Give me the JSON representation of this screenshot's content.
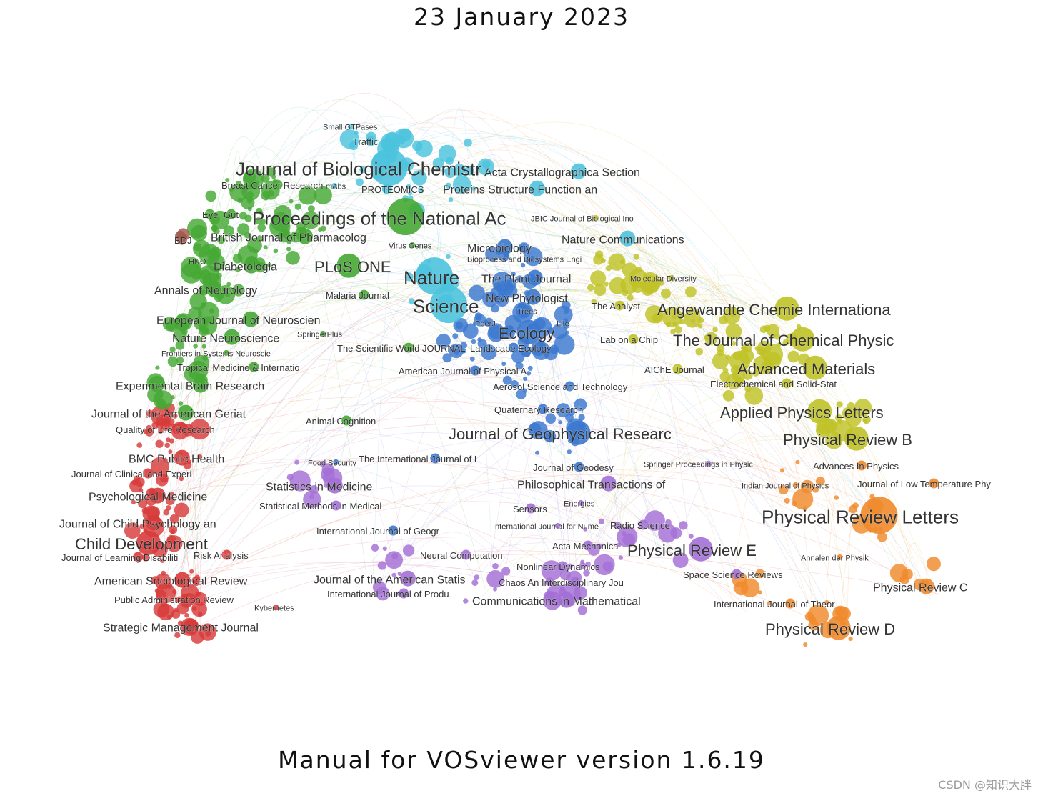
{
  "header": {
    "title": "23 January 2023"
  },
  "footer": {
    "title": "Manual for VOSviewer version 1.6.19",
    "watermark": "CSDN @知识大胖"
  },
  "clusters": {
    "red": "#d83a3a",
    "green": "#45a833",
    "blue": "#3a78cf",
    "yellow": "#bfc226",
    "purple": "#a36fd6",
    "orange": "#f08a2c",
    "cyan": "#4cc3dd",
    "brown": "#a0584c"
  },
  "journals": [
    {
      "label": "Small GTPases",
      "cluster": "cyan",
      "size": "xs"
    },
    {
      "label": "Traffic",
      "cluster": "cyan",
      "size": "s"
    },
    {
      "label": "Journal of Biological Chemistr",
      "cluster": "cyan",
      "size": "xl"
    },
    {
      "label": "Acta Crystallographica Section",
      "cluster": "cyan",
      "size": "m"
    },
    {
      "label": "Breast Cancer Research",
      "cluster": "green",
      "size": "s"
    },
    {
      "label": "mAbs",
      "cluster": "cyan",
      "size": "xs"
    },
    {
      "label": "PROTEOMICS",
      "cluster": "cyan",
      "size": "s"
    },
    {
      "label": "Proteins Structure Function an",
      "cluster": "cyan",
      "size": "m"
    },
    {
      "label": "Eye",
      "cluster": "green",
      "size": "s"
    },
    {
      "label": "Gut",
      "cluster": "green",
      "size": "s"
    },
    {
      "label": "Proceedings of the National Ac",
      "cluster": "green",
      "size": "xl"
    },
    {
      "label": "JBIC Journal of Biological Ino",
      "cluster": "yellow",
      "size": "xs"
    },
    {
      "label": "BDJ",
      "cluster": "brown",
      "size": "s"
    },
    {
      "label": "British Journal of Pharmacolog",
      "cluster": "green",
      "size": "m"
    },
    {
      "label": "Nature Communications",
      "cluster": "cyan",
      "size": "m"
    },
    {
      "label": "Virus Genes",
      "cluster": "green",
      "size": "xs"
    },
    {
      "label": "Microbiology",
      "cluster": "blue",
      "size": "m"
    },
    {
      "label": "HNO",
      "cluster": "green",
      "size": "xs"
    },
    {
      "label": "Diabetologia",
      "cluster": "green",
      "size": "m"
    },
    {
      "label": "PLoS ONE",
      "cluster": "green",
      "size": "l"
    },
    {
      "label": "Bioprocess and Biosystems Engi",
      "cluster": "blue",
      "size": "xs"
    },
    {
      "label": "Nature",
      "cluster": "cyan",
      "size": "xl"
    },
    {
      "label": "The Plant Journal",
      "cluster": "blue",
      "size": "m"
    },
    {
      "label": "Molecular Diversity",
      "cluster": "yellow",
      "size": "xs"
    },
    {
      "label": "Annals of Neurology",
      "cluster": "green",
      "size": "m"
    },
    {
      "label": "Malaria Journal",
      "cluster": "green",
      "size": "s"
    },
    {
      "label": "Science",
      "cluster": "cyan",
      "size": "xl"
    },
    {
      "label": "New Phytologist",
      "cluster": "blue",
      "size": "m"
    },
    {
      "label": "The Analyst",
      "cluster": "yellow",
      "size": "s"
    },
    {
      "label": "Angewandte Chemie Internationa",
      "cluster": "yellow",
      "size": "l"
    },
    {
      "label": "Trees",
      "cluster": "blue",
      "size": "xs"
    },
    {
      "label": "European Journal of Neuroscien",
      "cluster": "green",
      "size": "m"
    },
    {
      "label": "PeerJ",
      "cluster": "blue",
      "size": "xs"
    },
    {
      "label": "Life",
      "cluster": "blue",
      "size": "xs"
    },
    {
      "label": "Ecology",
      "cluster": "blue",
      "size": "l"
    },
    {
      "label": "Lab on a Chip",
      "cluster": "yellow",
      "size": "s"
    },
    {
      "label": "The Journal of Chemical Physic",
      "cluster": "yellow",
      "size": "l"
    },
    {
      "label": "Nature Neuroscience",
      "cluster": "green",
      "size": "m"
    },
    {
      "label": "SpringerPlus",
      "cluster": "green",
      "size": "xs"
    },
    {
      "label": "The Scientific World JOURNAL",
      "cluster": "green",
      "size": "s"
    },
    {
      "label": "Landscape Ecology",
      "cluster": "blue",
      "size": "s"
    },
    {
      "label": "Frontiers in Systems Neuroscie",
      "cluster": "green",
      "size": "xs"
    },
    {
      "label": "Advanced Materials",
      "cluster": "yellow",
      "size": "l"
    },
    {
      "label": "Tropical Medicine & Internatio",
      "cluster": "green",
      "size": "s"
    },
    {
      "label": "American Journal of Physical A",
      "cluster": "blue",
      "size": "s"
    },
    {
      "label": "AIChE Journal",
      "cluster": "yellow",
      "size": "s"
    },
    {
      "label": "Electrochemical and Solid-Stat",
      "cluster": "yellow",
      "size": "s"
    },
    {
      "label": "Experimental Brain Research",
      "cluster": "green",
      "size": "m"
    },
    {
      "label": "Aerosol Science and Technology",
      "cluster": "blue",
      "size": "s"
    },
    {
      "label": "Journal of the American Geriat",
      "cluster": "green",
      "size": "m"
    },
    {
      "label": "Quaternary Research",
      "cluster": "blue",
      "size": "s"
    },
    {
      "label": "Applied Physics Letters",
      "cluster": "yellow",
      "size": "l"
    },
    {
      "label": "Animal Cognition",
      "cluster": "green",
      "size": "s"
    },
    {
      "label": "Quality of Life Research",
      "cluster": "red",
      "size": "s"
    },
    {
      "label": "Journal of Geophysical Researc",
      "cluster": "blue",
      "size": "l"
    },
    {
      "label": "Physical Review B",
      "cluster": "yellow",
      "size": "l"
    },
    {
      "label": "BMC Public Health",
      "cluster": "red",
      "size": "m"
    },
    {
      "label": "Food Security",
      "cluster": "blue",
      "size": "xs"
    },
    {
      "label": "The International Journal of L",
      "cluster": "blue",
      "size": "s"
    },
    {
      "label": "Journal of Geodesy",
      "cluster": "blue",
      "size": "s"
    },
    {
      "label": "Springer Proceedings in Physic",
      "cluster": "purple",
      "size": "xs"
    },
    {
      "label": "Advances In Physics",
      "cluster": "orange",
      "size": "s"
    },
    {
      "label": "Journal of Clinical and Experi",
      "cluster": "red",
      "size": "s"
    },
    {
      "label": "Statistics in Medicine",
      "cluster": "purple",
      "size": "m"
    },
    {
      "label": "Philosophical Transactions of",
      "cluster": "purple",
      "size": "m"
    },
    {
      "label": "Indian Journal of Physics",
      "cluster": "orange",
      "size": "xs"
    },
    {
      "label": "Journal of Low Temperature Phy",
      "cluster": "orange",
      "size": "s"
    },
    {
      "label": "Psychological Medicine",
      "cluster": "red",
      "size": "m"
    },
    {
      "label": "Energies",
      "cluster": "purple",
      "size": "xs"
    },
    {
      "label": "Statistical Methods in Medical",
      "cluster": "purple",
      "size": "s"
    },
    {
      "label": "Sensors",
      "cluster": "purple",
      "size": "s"
    },
    {
      "label": "Physical Review Letters",
      "cluster": "orange",
      "size": "xl"
    },
    {
      "label": "Journal of Child Psychology an",
      "cluster": "red",
      "size": "m"
    },
    {
      "label": "International Journal for Nume",
      "cluster": "purple",
      "size": "xs"
    },
    {
      "label": "Radio Science",
      "cluster": "purple",
      "size": "s"
    },
    {
      "label": "International Journal of Geogr",
      "cluster": "blue",
      "size": "s"
    },
    {
      "label": "Child Development",
      "cluster": "red",
      "size": "l"
    },
    {
      "label": "Acta Mechanica",
      "cluster": "purple",
      "size": "s"
    },
    {
      "label": "Physical Review E",
      "cluster": "purple",
      "size": "l"
    },
    {
      "label": "Journal of Learning Disabiliti",
      "cluster": "red",
      "size": "s"
    },
    {
      "label": "Risk Analysis",
      "cluster": "red",
      "size": "s"
    },
    {
      "label": "Neural Computation",
      "cluster": "purple",
      "size": "s"
    },
    {
      "label": "Annalen der Physik",
      "cluster": "orange",
      "size": "xs"
    },
    {
      "label": "Nonlinear Dynamics",
      "cluster": "purple",
      "size": "s"
    },
    {
      "label": "Space Science Reviews",
      "cluster": "purple",
      "size": "s"
    },
    {
      "label": "American Sociological Review",
      "cluster": "red",
      "size": "m"
    },
    {
      "label": "Journal of the American Statis",
      "cluster": "purple",
      "size": "m"
    },
    {
      "label": "Chaos An Interdisciplinary Jou",
      "cluster": "purple",
      "size": "s"
    },
    {
      "label": "Physical Review C",
      "cluster": "orange",
      "size": "m"
    },
    {
      "label": "Public Administration Review",
      "cluster": "red",
      "size": "s"
    },
    {
      "label": "International Journal of Produ",
      "cluster": "purple",
      "size": "s"
    },
    {
      "label": "Communications in Mathematical",
      "cluster": "purple",
      "size": "m"
    },
    {
      "label": "Kybernetes",
      "cluster": "red",
      "size": "xs"
    },
    {
      "label": "International Journal of Theor",
      "cluster": "orange",
      "size": "s"
    },
    {
      "label": "Strategic Management Journal",
      "cluster": "red",
      "size": "m"
    },
    {
      "label": "Physical Review D",
      "cluster": "orange",
      "size": "l"
    }
  ]
}
